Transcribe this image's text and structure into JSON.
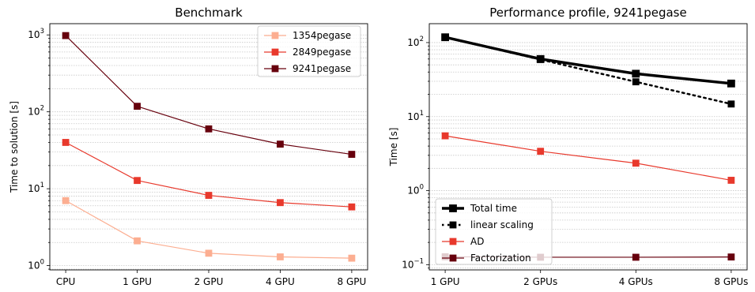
{
  "chart_data": [
    {
      "type": "line",
      "title": "Benchmark",
      "xlabel": "",
      "ylabel": "Time to solution [s]",
      "yscale": "log",
      "ylim": [
        0.88,
        1400
      ],
      "categories": [
        "CPU",
        "1 GPU",
        "2 GPU",
        "4 GPU",
        "8 GPU"
      ],
      "y_ticks": [
        1,
        10,
        100,
        1000
      ],
      "y_tick_labels": [
        {
          "base": "10",
          "exp": "0"
        },
        {
          "base": "10",
          "exp": "1"
        },
        {
          "base": "10",
          "exp": "2"
        },
        {
          "base": "10",
          "exp": "3"
        }
      ],
      "grid": "y-minor",
      "legend_position": "top-right",
      "series": [
        {
          "name": "1354pegase",
          "color": "#fcae91",
          "values": [
            7.0,
            2.1,
            1.45,
            1.3,
            1.25
          ]
        },
        {
          "name": "2849pegase",
          "color": "#e8392c",
          "values": [
            40,
            12.8,
            8.2,
            6.6,
            5.8
          ]
        },
        {
          "name": "9241pegase",
          "color": "#67000d",
          "values": [
            980,
            118,
            60,
            38,
            28
          ]
        }
      ]
    },
    {
      "type": "line",
      "title": "Performance profile, 9241pegase",
      "xlabel": "",
      "ylabel": "Time [s]",
      "yscale": "log",
      "ylim": [
        0.085,
        180
      ],
      "categories": [
        "1 GPU",
        "2 GPUs",
        "4 GPUs",
        "8 GPUs"
      ],
      "y_ticks": [
        0.1,
        1,
        10,
        100
      ],
      "y_tick_labels": [
        {
          "base": "10",
          "exp": "−1"
        },
        {
          "base": "10",
          "exp": "0"
        },
        {
          "base": "10",
          "exp": "1"
        },
        {
          "base": "10",
          "exp": "2"
        }
      ],
      "grid": "y-minor",
      "legend_position": "bottom-left",
      "series": [
        {
          "name": "Total time",
          "color": "#000000",
          "style": "solid-thick",
          "values": [
            118,
            60,
            38,
            28
          ]
        },
        {
          "name": "linear scaling",
          "color": "#000000",
          "style": "dotted",
          "values": [
            118,
            59,
            29.5,
            14.8
          ]
        },
        {
          "name": "AD",
          "color": "#e8392c",
          "style": "solid",
          "values": [
            5.5,
            3.4,
            2.35,
            1.38
          ]
        },
        {
          "name": "Factorization",
          "color": "#67000d",
          "style": "solid",
          "values": [
            0.128,
            0.126,
            0.126,
            0.127
          ]
        }
      ]
    }
  ]
}
